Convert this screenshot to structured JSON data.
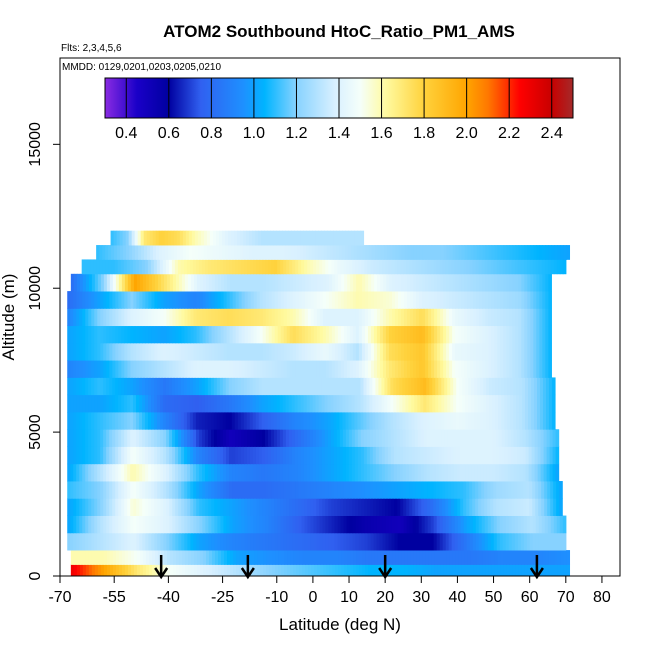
{
  "chart_data": {
    "type": "heatmap",
    "title": "ATOM2 Southbound HtoC_Ratio_PM1_AMS",
    "flights_note": "Flts: 2,3,4,5,6",
    "dates_note": "MMDD: 0129,0201,0203,0205,0210",
    "xlabel": "Latitude (deg N)",
    "ylabel": "Altitude (m)",
    "xlim": [
      -70,
      85
    ],
    "ylim": [
      0,
      18000
    ],
    "x_ticks": [
      -70,
      -55,
      -40,
      -25,
      -10,
      0,
      10,
      20,
      30,
      40,
      50,
      60,
      70,
      80
    ],
    "x_tick_labels": [
      "-70",
      "-55",
      "-40",
      "-25",
      "-10",
      "0",
      "10",
      "20",
      "30",
      "40",
      "50",
      "60",
      "70",
      "80"
    ],
    "y_ticks": [
      0,
      5000,
      10000,
      15000
    ],
    "y_tick_labels": [
      "0",
      "5000",
      "10000",
      "15000"
    ],
    "colorbar": {
      "range": [
        0.3,
        2.5
      ],
      "ticks": [
        0.4,
        0.6,
        0.8,
        1.0,
        1.2,
        1.4,
        1.6,
        1.8,
        2.0,
        2.2,
        2.4
      ],
      "tick_labels": [
        "0.4",
        "0.6",
        "0.8",
        "1.0",
        "1.2",
        "1.4",
        "1.6",
        "1.8",
        "2.0",
        "2.2",
        "2.4"
      ],
      "stops": [
        {
          "v": 0.3,
          "c": "#8a2be2"
        },
        {
          "v": 0.45,
          "c": "#1a00c8"
        },
        {
          "v": 0.6,
          "c": "#0000a0"
        },
        {
          "v": 0.75,
          "c": "#3060f0"
        },
        {
          "v": 0.95,
          "c": "#1e90ff"
        },
        {
          "v": 1.05,
          "c": "#00b4ff"
        },
        {
          "v": 1.2,
          "c": "#87d2ff"
        },
        {
          "v": 1.38,
          "c": "#d8f0ff"
        },
        {
          "v": 1.5,
          "c": "#f5fffa"
        },
        {
          "v": 1.62,
          "c": "#fffaa0"
        },
        {
          "v": 1.8,
          "c": "#ffd23c"
        },
        {
          "v": 2.0,
          "c": "#ffa500"
        },
        {
          "v": 2.1,
          "c": "#ff7800"
        },
        {
          "v": 2.25,
          "c": "#ff0000"
        },
        {
          "v": 2.4,
          "c": "#c80000"
        },
        {
          "v": 2.5,
          "c": "#a52a2a"
        }
      ]
    },
    "flight_arrows_lat": [
      -42,
      -18,
      20,
      62
    ],
    "layers": [
      {
        "y0": 0,
        "y1": 400,
        "lat_min": -67,
        "lat_max": 71,
        "v": [
          2.3,
          2.0,
          1.7,
          1.5,
          1.4,
          1.3,
          1.2,
          1.15,
          1.1,
          1.05,
          1.05,
          1.0,
          1.0,
          1.0,
          1.0,
          1.0
        ]
      },
      {
        "y0": 400,
        "y1": 900,
        "lat_min": -67,
        "lat_max": 71,
        "v": [
          1.6,
          1.6,
          1.5,
          1.3,
          1.2,
          1.0,
          0.95,
          0.9,
          0.9,
          0.85,
          0.85,
          0.85,
          0.85,
          0.9,
          0.9,
          0.95
        ]
      },
      {
        "y0": 900,
        "y1": 1500,
        "lat_min": -68,
        "lat_max": 70,
        "v": [
          1.2,
          1.3,
          1.4,
          1.2,
          1.0,
          0.9,
          0.85,
          0.8,
          0.75,
          0.7,
          0.6,
          0.6,
          0.85,
          1.1,
          1.2,
          1.2
        ]
      },
      {
        "y0": 1500,
        "y1": 2100,
        "lat_min": -68,
        "lat_max": 70,
        "v": [
          1.0,
          1.3,
          1.5,
          1.4,
          1.2,
          1.0,
          0.9,
          0.75,
          0.65,
          0.55,
          0.5,
          0.7,
          1.0,
          1.2,
          1.3,
          1.1
        ]
      },
      {
        "y0": 2100,
        "y1": 2700,
        "lat_min": -68,
        "lat_max": 69,
        "v": [
          1.0,
          1.2,
          1.55,
          1.4,
          1.1,
          1.0,
          0.9,
          0.8,
          0.7,
          0.65,
          0.6,
          0.8,
          1.1,
          1.3,
          1.35,
          1.0
        ]
      },
      {
        "y0": 2700,
        "y1": 3300,
        "lat_min": -68,
        "lat_max": 69,
        "v": [
          1.1,
          1.2,
          1.5,
          1.3,
          1.0,
          0.8,
          0.8,
          0.85,
          0.9,
          0.95,
          1.0,
          1.05,
          1.1,
          1.25,
          1.3,
          1.0
        ]
      },
      {
        "y0": 3300,
        "y1": 3900,
        "lat_min": -68,
        "lat_max": 68,
        "v": [
          1.0,
          1.3,
          1.6,
          1.4,
          1.1,
          0.9,
          0.85,
          0.9,
          1.0,
          1.1,
          1.2,
          1.3,
          1.35,
          1.35,
          1.3,
          1.0
        ]
      },
      {
        "y0": 3900,
        "y1": 4500,
        "lat_min": -68,
        "lat_max": 68,
        "v": [
          1.0,
          1.1,
          1.5,
          1.3,
          0.9,
          0.7,
          0.75,
          0.9,
          1.0,
          1.1,
          1.3,
          1.35,
          1.4,
          1.4,
          1.35,
          1.05
        ]
      },
      {
        "y0": 4500,
        "y1": 5100,
        "lat_min": -68,
        "lat_max": 68,
        "v": [
          1.0,
          1.1,
          1.4,
          1.2,
          0.7,
          0.5,
          0.6,
          0.8,
          1.0,
          1.2,
          1.3,
          1.4,
          1.4,
          1.4,
          1.3,
          1.1
        ]
      },
      {
        "y0": 5100,
        "y1": 5700,
        "lat_min": -68,
        "lat_max": 67,
        "v": [
          1.0,
          1.1,
          1.2,
          0.9,
          0.65,
          0.6,
          0.75,
          0.9,
          1.0,
          1.15,
          1.3,
          1.4,
          1.45,
          1.4,
          1.3,
          1.05
        ]
      },
      {
        "y0": 5700,
        "y1": 6300,
        "lat_min": -68,
        "lat_max": 67,
        "v": [
          1.0,
          1.0,
          1.1,
          0.8,
          0.75,
          0.85,
          1.0,
          1.1,
          1.2,
          1.3,
          1.5,
          1.7,
          1.5,
          1.4,
          1.3,
          1.05
        ]
      },
      {
        "y0": 6300,
        "y1": 6900,
        "lat_min": -68,
        "lat_max": 67,
        "v": [
          1.0,
          1.1,
          1.0,
          0.85,
          1.0,
          1.2,
          1.3,
          1.3,
          1.3,
          1.3,
          1.75,
          1.9,
          1.5,
          1.35,
          1.3,
          1.05
        ]
      },
      {
        "y0": 6900,
        "y1": 7500,
        "lat_min": -68,
        "lat_max": 66,
        "v": [
          0.9,
          1.0,
          1.2,
          1.3,
          1.4,
          1.4,
          1.35,
          1.3,
          1.3,
          1.4,
          1.7,
          1.85,
          1.5,
          1.4,
          1.3,
          1.05
        ]
      },
      {
        "y0": 7500,
        "y1": 8100,
        "lat_min": -68,
        "lat_max": 66,
        "v": [
          1.0,
          1.1,
          1.3,
          1.4,
          1.35,
          1.3,
          1.3,
          1.35,
          1.45,
          1.3,
          1.75,
          1.85,
          1.45,
          1.4,
          1.3,
          1.05
        ]
      },
      {
        "y0": 8100,
        "y1": 8700,
        "lat_min": -68,
        "lat_max": 66,
        "v": [
          1.0,
          1.1,
          1.05,
          1.0,
          1.1,
          1.3,
          1.5,
          1.75,
          1.6,
          1.4,
          1.8,
          1.9,
          1.5,
          1.4,
          1.3,
          1.05
        ]
      },
      {
        "y0": 8700,
        "y1": 9300,
        "lat_min": -68,
        "lat_max": 66,
        "v": [
          0.9,
          1.2,
          1.4,
          1.5,
          1.7,
          1.75,
          1.7,
          1.6,
          1.4,
          1.4,
          1.6,
          1.75,
          1.45,
          1.35,
          1.3,
          1.05
        ]
      },
      {
        "y0": 9300,
        "y1": 9900,
        "lat_min": -68,
        "lat_max": 66,
        "v": [
          0.8,
          1.0,
          1.2,
          1.0,
          0.9,
          1.1,
          1.3,
          1.4,
          1.5,
          1.6,
          1.55,
          1.4,
          1.35,
          1.3,
          1.25,
          1.05
        ]
      },
      {
        "y0": 9900,
        "y1": 10500,
        "lat_min": -67,
        "lat_max": 66,
        "v": [
          0.8,
          1.2,
          2.0,
          1.7,
          1.4,
          1.3,
          1.3,
          1.35,
          1.4,
          1.6,
          1.4,
          1.35,
          1.3,
          1.25,
          1.2,
          1.05
        ]
      },
      {
        "y0": 10500,
        "y1": 11000,
        "lat_min": -64,
        "lat_max": 70,
        "v": [
          1.1,
          1.1,
          1.2,
          1.6,
          1.7,
          1.75,
          1.8,
          1.6,
          1.45,
          1.35,
          1.3,
          1.25,
          1.2,
          1.15,
          1.1,
          1.05
        ]
      },
      {
        "y0": 11000,
        "y1": 11500,
        "lat_min": -60,
        "lat_max": 71,
        "v": [
          1.1,
          1.2,
          1.4,
          1.5,
          1.45,
          1.4,
          1.4,
          1.35,
          1.3,
          1.25,
          1.2,
          1.2,
          1.15,
          1.1,
          1.05,
          1.0
        ]
      },
      {
        "y0": 11500,
        "y1": 12000,
        "lat_min": -56,
        "lat_max": 14,
        "v": [
          1.1,
          1.2,
          1.7,
          1.8,
          1.75,
          1.6,
          1.5,
          1.4,
          1.35,
          1.3,
          1.3,
          1.3,
          1.3,
          1.3,
          1.3,
          1.3
        ]
      }
    ]
  }
}
